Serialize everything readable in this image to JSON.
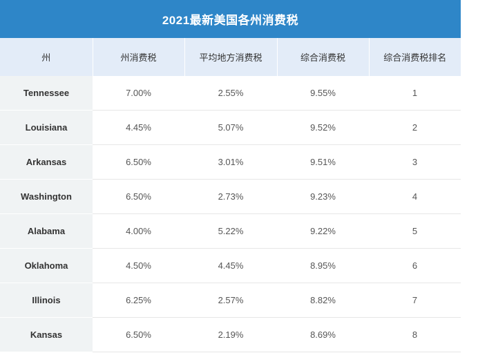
{
  "title": "2021最新美国各州消费税",
  "headers": [
    "州",
    "州消费税",
    "平均地方消费税",
    "综合消费税",
    "综合消费税排名"
  ],
  "rows": [
    [
      "Tennessee",
      "7.00%",
      "2.55%",
      "9.55%",
      "1"
    ],
    [
      "Louisiana",
      "4.45%",
      "5.07%",
      "9.52%",
      "2"
    ],
    [
      "Arkansas",
      "6.50%",
      "3.01%",
      "9.51%",
      "3"
    ],
    [
      "Washington",
      "6.50%",
      "2.73%",
      "9.23%",
      "4"
    ],
    [
      "Alabama",
      "4.00%",
      "5.22%",
      "9.22%",
      "5"
    ],
    [
      "Oklahoma",
      "4.50%",
      "4.45%",
      "8.95%",
      "6"
    ],
    [
      "Illinois",
      "6.25%",
      "2.57%",
      "8.82%",
      "7"
    ],
    [
      "Kansas",
      "6.50%",
      "2.19%",
      "8.69%",
      "8"
    ]
  ],
  "colors": {
    "title_bg": "#2e86c8",
    "header_bg": "#e3ecf8",
    "state_col_bg": "#f0f3f4"
  }
}
